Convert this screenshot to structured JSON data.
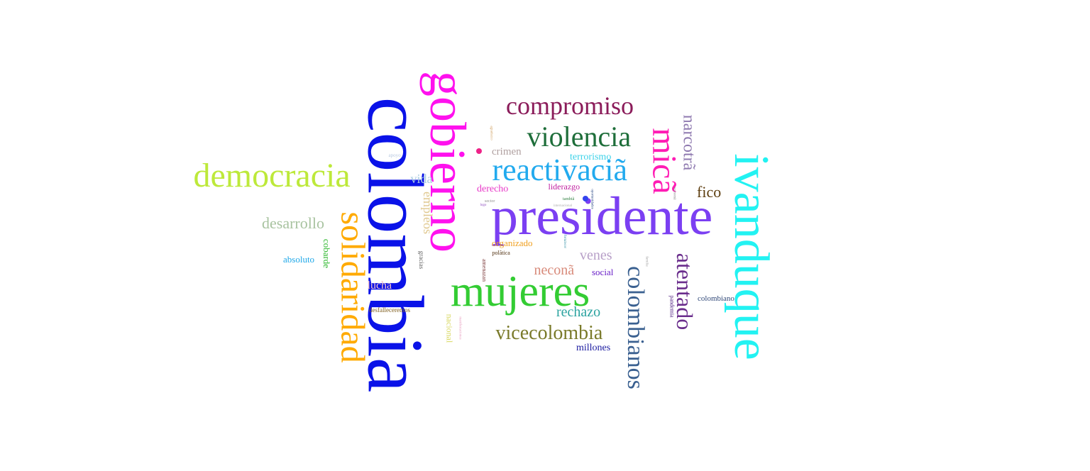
{
  "words": [
    {
      "text": "colombia",
      "color": "#0a12e8",
      "rotated": true
    },
    {
      "text": "gobierno",
      "color": "#ff11ee",
      "rotated": true
    },
    {
      "text": "presidente",
      "color": "#7b3ff2",
      "rotated": false
    },
    {
      "text": "ivanduque",
      "color": "#22f2f2",
      "rotated": true
    },
    {
      "text": "mujeres",
      "color": "#33cc33",
      "rotated": false
    },
    {
      "text": "democracia",
      "color": "#bde93a",
      "rotated": false
    },
    {
      "text": "solidaridad",
      "color": "#ffaa00",
      "rotated": true
    },
    {
      "text": "reactivaciã",
      "color": "#22aaee",
      "rotated": false
    },
    {
      "text": "violencia",
      "color": "#1e6e3a",
      "rotated": false
    },
    {
      "text": "compromiso",
      "color": "#8b1c5a",
      "rotated": false
    },
    {
      "text": "colombianos",
      "color": "#3a6090",
      "rotated": true
    },
    {
      "text": "micã",
      "color": "#ff1cb4",
      "rotated": true
    },
    {
      "text": "atentado",
      "color": "#6a2d8c",
      "rotated": true
    },
    {
      "text": "narcotrã",
      "color": "#8f7ab0",
      "rotated": true
    },
    {
      "text": "vicecolombia",
      "color": "#7a7a2a",
      "rotated": false
    },
    {
      "text": "desarrollo",
      "color": "#a8c3a0",
      "rotated": false
    },
    {
      "text": "rechazo",
      "color": "#2ba3a0",
      "rotated": false
    },
    {
      "text": "neconã",
      "color": "#d88a7a",
      "rotated": false
    },
    {
      "text": "venes",
      "color": "#b8a0c8",
      "rotated": false
    },
    {
      "text": "fico",
      "color": "#5c3d0e",
      "rotated": false
    },
    {
      "text": "empleos",
      "color": "#e0c890",
      "rotated": true
    },
    {
      "text": "vida",
      "color": "#a8cbe0",
      "rotated": false
    },
    {
      "text": "crimen",
      "color": "#b0a0a0",
      "rotated": false
    },
    {
      "text": "lucha",
      "color": "#f2c2c8",
      "rotated": false
    },
    {
      "text": "terrorismo",
      "color": "#3cd2e8",
      "rotated": false
    },
    {
      "text": "derecho",
      "color": "#e838c8",
      "rotated": false
    },
    {
      "text": "liderazgo",
      "color": "#c020a0",
      "rotated": false
    },
    {
      "text": "millones",
      "color": "#1a1aa0",
      "rotated": false
    },
    {
      "text": "organizado",
      "color": "#f0a020",
      "rotated": false
    },
    {
      "text": "social",
      "color": "#6a20c8",
      "rotated": false
    },
    {
      "text": "absoluto",
      "color": "#20a8e8",
      "rotated": false
    },
    {
      "text": "cobarde",
      "color": "#30b830",
      "rotated": true
    },
    {
      "text": "colombiano",
      "color": "#304878",
      "rotated": false
    },
    {
      "text": "nacional",
      "color": "#d8d860",
      "rotated": true
    },
    {
      "text": "desfalleceremos",
      "color": "#806020",
      "rotated": false
    },
    {
      "text": "gracias",
      "color": "#606060",
      "rotated": true
    },
    {
      "text": "polãtica",
      "color": "#503010",
      "rotated": false
    },
    {
      "text": "pandemia",
      "color": "#502080",
      "rotated": true
    },
    {
      "text": "amenazan",
      "color": "#804040",
      "rotated": true
    },
    {
      "text": "apoyo",
      "color": "#b8c8e0",
      "rotated": false
    },
    {
      "text": "tambiã",
      "color": "#308040",
      "rotated": false
    },
    {
      "text": "sector",
      "color": "#909090",
      "rotated": false
    },
    {
      "text": "internacional",
      "color": "#b0b0b0",
      "rotated": false
    },
    {
      "text": "logo",
      "color": "#9050c0",
      "rotated": false
    },
    {
      "text": "fortalecer",
      "color": "#2a8aa0",
      "rotated": true
    },
    {
      "text": "familia",
      "color": "#a0a0a0",
      "rotated": true
    },
    {
      "text": "economã",
      "color": "#808080",
      "rotated": true
    },
    {
      "text": "oportunidades",
      "color": "#204080",
      "rotated": true
    },
    {
      "text": "agradezco",
      "color": "#d0a060",
      "rotated": true
    },
    {
      "text": "manifestaciones",
      "color": "#e8a0c0",
      "rotated": true
    },
    {
      "text": "",
      "color": "#ee2288",
      "rotated": false
    },
    {
      "text": "",
      "color": "#3344ee",
      "rotated": false
    }
  ]
}
